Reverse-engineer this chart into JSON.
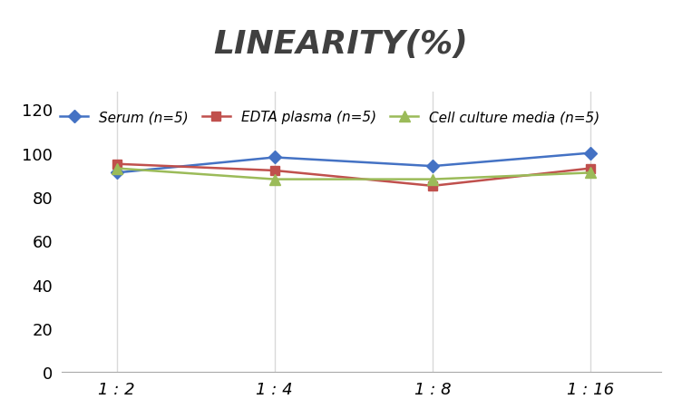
{
  "title": "LINEARITY(%)",
  "x_labels": [
    "1 : 2",
    "1 : 4",
    "1 : 8",
    "1 : 16"
  ],
  "x_positions": [
    0,
    1,
    2,
    3
  ],
  "series": [
    {
      "label": "Serum (n=5)",
      "values": [
        91,
        98,
        94,
        100
      ],
      "color": "#4472C4",
      "marker": "D",
      "marker_size": 7,
      "linewidth": 1.8
    },
    {
      "label": "EDTA plasma (n=5)",
      "values": [
        95,
        92,
        85,
        93
      ],
      "color": "#C0504D",
      "marker": "s",
      "marker_size": 7,
      "linewidth": 1.8
    },
    {
      "label": "Cell culture media (n=5)",
      "values": [
        93,
        88,
        88,
        91
      ],
      "color": "#9BBB59",
      "marker": "^",
      "marker_size": 8,
      "linewidth": 1.8
    }
  ],
  "ylim": [
    0,
    128
  ],
  "yticks": [
    0,
    20,
    40,
    60,
    80,
    100,
    120
  ],
  "background_color": "#FFFFFF",
  "grid_color": "#D9D9D9",
  "title_fontsize": 26,
  "legend_fontsize": 11,
  "tick_fontsize": 13
}
